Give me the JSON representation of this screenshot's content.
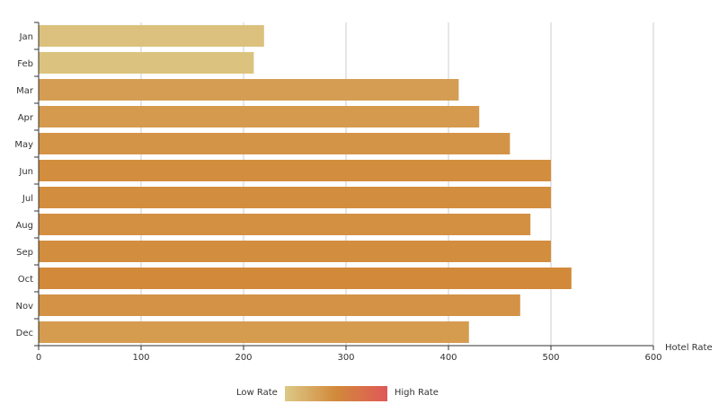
{
  "chart_data": {
    "type": "bar",
    "orientation": "horizontal",
    "categories": [
      "Jan",
      "Feb",
      "Mar",
      "Apr",
      "May",
      "Jun",
      "Jul",
      "Aug",
      "Sep",
      "Oct",
      "Nov",
      "Dec"
    ],
    "values": [
      220,
      210,
      410,
      430,
      460,
      500,
      500,
      480,
      500,
      520,
      470,
      420
    ],
    "xlabel": "Hotel Rate",
    "ylabel": "",
    "xlim": [
      0,
      600
    ],
    "xticks": [
      "0",
      "100",
      "200",
      "300",
      "400",
      "500",
      "600"
    ],
    "grid": "vertical",
    "legend_placement": "bottom-center",
    "colormap": [
      "#dcc987",
      "#d2893a",
      "#e05858"
    ]
  },
  "legend": {
    "low_label": "Low Rate",
    "high_label": "High Rate"
  }
}
